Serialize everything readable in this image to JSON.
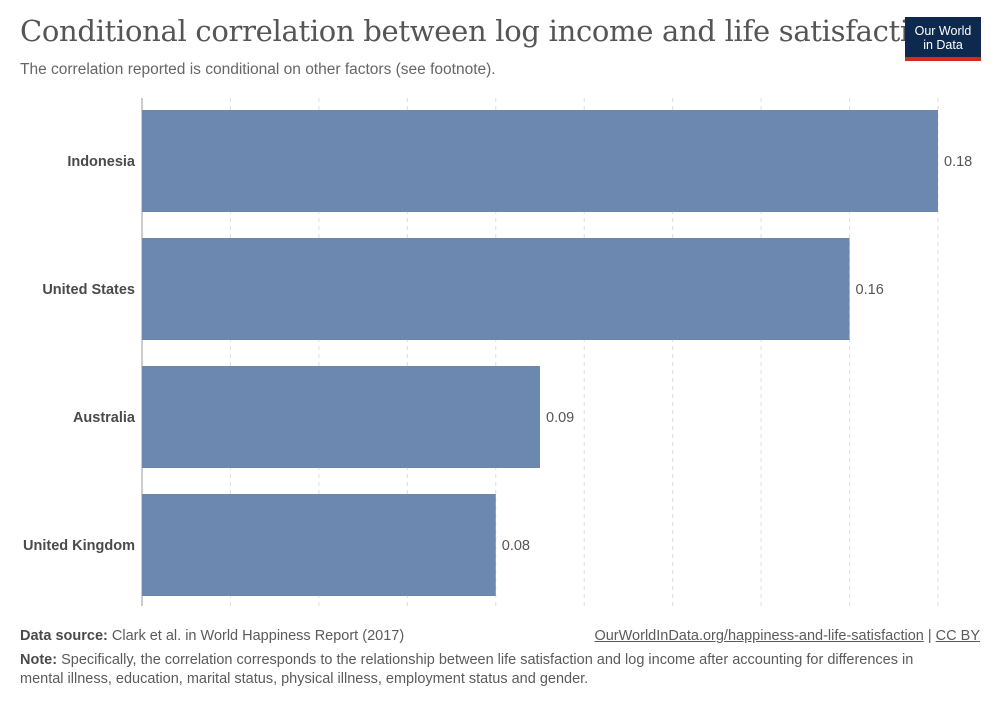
{
  "header": {
    "title": "Conditional correlation between log income and life satisfaction",
    "subtitle": "The correlation reported is conditional on other factors (see footnote).",
    "logo_line1": "Our World",
    "logo_line2": "in Data"
  },
  "footer": {
    "source_label": "Data source:",
    "source_text": "Clark et al. in World Happiness Report (2017)",
    "url": "OurWorldInData.org/happiness-and-life-satisfaction",
    "separator": "|",
    "license": "CC BY",
    "note_label": "Note:",
    "note_text": "Specifically, the correlation corresponds to the relationship between life satisfaction and log income after accounting for differences in mental illness, education, marital status, physical illness, employment status and gender."
  },
  "chart_data": {
    "type": "bar",
    "orientation": "horizontal",
    "categories": [
      "Indonesia",
      "United States",
      "Australia",
      "United Kingdom"
    ],
    "values": [
      0.18,
      0.16,
      0.09,
      0.08
    ],
    "value_labels": [
      "0.18",
      "0.16",
      "0.09",
      "0.08"
    ],
    "xlim": [
      0,
      0.18
    ],
    "grid": true,
    "bar_color": "#6d88b0"
  }
}
